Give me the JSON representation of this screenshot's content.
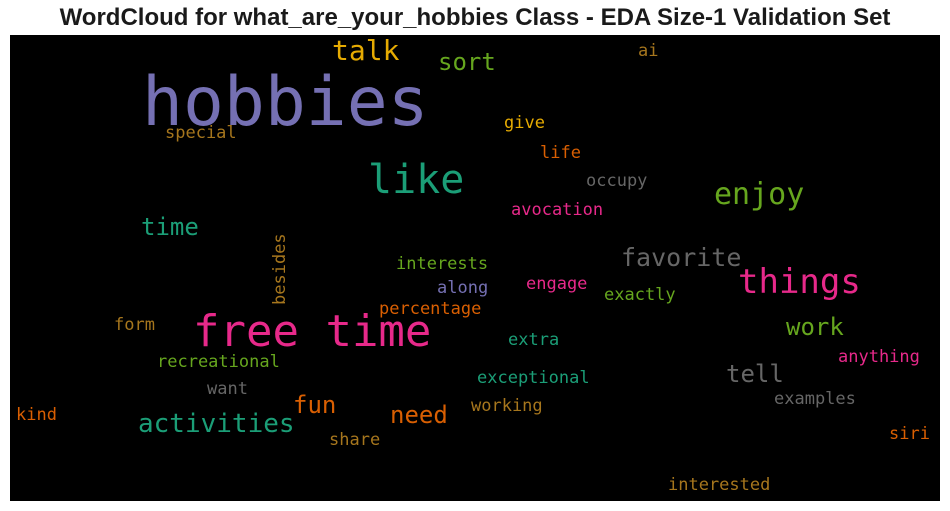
{
  "title": "WordCloud for what_are_your_hobbies Class - EDA Size-1 Validation Set",
  "colors": {
    "purple": "#7570b3",
    "pink": "#e7298a",
    "teal": "#1b9e77",
    "green": "#66a61e",
    "orange": "#d95f02",
    "gold": "#e6ab02",
    "brown": "#a6761d",
    "gray": "#666666"
  },
  "words": [
    {
      "text": "hobbies",
      "color": "#7570b3"
    },
    {
      "text": "free time",
      "color": "#e7298a"
    },
    {
      "text": "like",
      "color": "#1b9e77"
    },
    {
      "text": "things",
      "color": "#e7298a"
    },
    {
      "text": "enjoy",
      "color": "#66a61e"
    },
    {
      "text": "talk",
      "color": "#e6ab02"
    },
    {
      "text": "activities",
      "color": "#1b9e77"
    },
    {
      "text": "favorite",
      "color": "#666666"
    },
    {
      "text": "sort",
      "color": "#66a61e"
    },
    {
      "text": "time",
      "color": "#1b9e77"
    },
    {
      "text": "work",
      "color": "#66a61e"
    },
    {
      "text": "tell",
      "color": "#666666"
    },
    {
      "text": "need",
      "color": "#d95f02"
    },
    {
      "text": "fun",
      "color": "#d95f02"
    },
    {
      "text": "special",
      "color": "#a6761d"
    },
    {
      "text": "give",
      "color": "#e6ab02"
    },
    {
      "text": "ai",
      "color": "#a6761d"
    },
    {
      "text": "life",
      "color": "#d95f02"
    },
    {
      "text": "occupy",
      "color": "#666666"
    },
    {
      "text": "avocation",
      "color": "#e7298a"
    },
    {
      "text": "interests",
      "color": "#66a61e"
    },
    {
      "text": "along",
      "color": "#7570b3"
    },
    {
      "text": "engage",
      "color": "#e7298a"
    },
    {
      "text": "exactly",
      "color": "#66a61e"
    },
    {
      "text": "percentage",
      "color": "#d95f02"
    },
    {
      "text": "form",
      "color": "#a6761d"
    },
    {
      "text": "extra",
      "color": "#1b9e77"
    },
    {
      "text": "recreational",
      "color": "#66a61e"
    },
    {
      "text": "anything",
      "color": "#e7298a"
    },
    {
      "text": "want",
      "color": "#666666"
    },
    {
      "text": "exceptional",
      "color": "#1b9e77"
    },
    {
      "text": "examples",
      "color": "#666666"
    },
    {
      "text": "kind",
      "color": "#d95f02"
    },
    {
      "text": "working",
      "color": "#a6761d"
    },
    {
      "text": "share",
      "color": "#a6761d"
    },
    {
      "text": "siri",
      "color": "#d95f02"
    },
    {
      "text": "interested",
      "color": "#a6761d"
    },
    {
      "text": "besides",
      "color": "#a6761d"
    }
  ]
}
